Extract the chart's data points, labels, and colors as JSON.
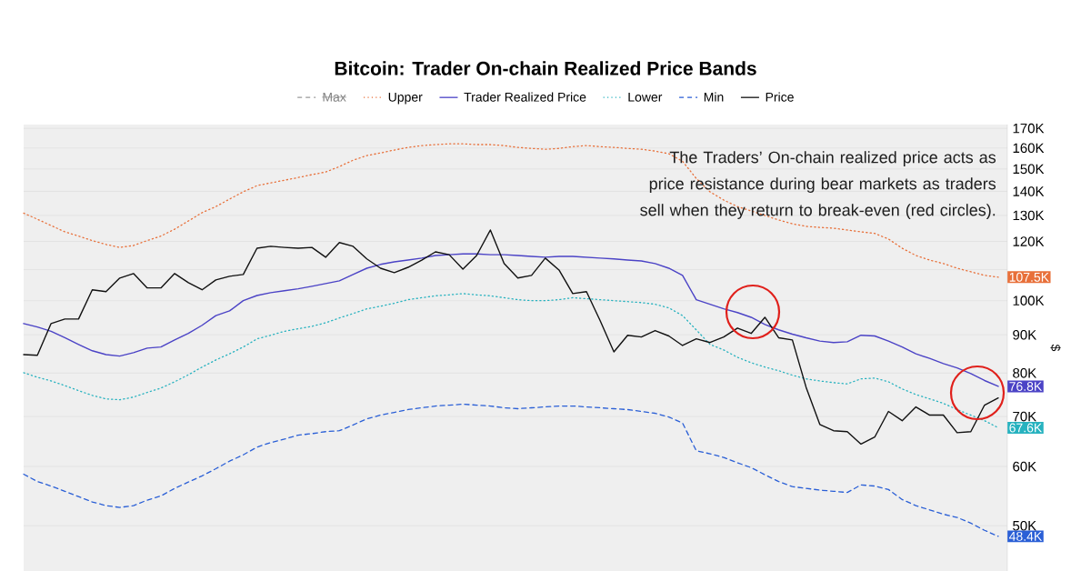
{
  "chart_data": {
    "type": "line",
    "title": "Bitcoin: Trader On-chain Realized Price Bands",
    "ylabel": "$",
    "annotations": [
      "The Traders’ On-chain realized price acts as price resistance during bear markets as traders sell when they return to break-even (red circles)."
    ],
    "categories": [
      null,
      null,
      null,
      null,
      null,
      null,
      null,
      null,
      null,
      null,
      null,
      null,
      null,
      null,
      null,
      null,
      null,
      null,
      null,
      null,
      null,
      null,
      null,
      null,
      null,
      null,
      null,
      null,
      null,
      null,
      null,
      null,
      null,
      null,
      null,
      null,
      null,
      null,
      null,
      null,
      null,
      null,
      null,
      null,
      null,
      null,
      null,
      null,
      null,
      null,
      null,
      null,
      null,
      null,
      null,
      null,
      null,
      null,
      null,
      null,
      null,
      null,
      null,
      null,
      null,
      null,
      null,
      null,
      null,
      null,
      null,
      null
    ],
    "log": true,
    "ylim": [
      43.5,
      172
    ],
    "yticks": [
      {
        "value": 50,
        "label": "50K"
      },
      {
        "value": 60,
        "label": "60K"
      },
      {
        "value": 70,
        "label": "70K"
      },
      {
        "value": 80,
        "label": "80K"
      },
      {
        "value": 90,
        "label": "90K"
      },
      {
        "value": 100,
        "label": "100K"
      },
      {
        "value": 110,
        "label": null
      },
      {
        "value": 120,
        "label": "120K"
      },
      {
        "value": 130,
        "label": "130K"
      },
      {
        "value": 140,
        "label": "140K"
      },
      {
        "value": 150,
        "label": "150K"
      },
      {
        "value": 160,
        "label": "160K"
      },
      {
        "value": 170,
        "label": "170K"
      }
    ],
    "tick_labels": "y",
    "grid": "y",
    "legend": "top",
    "marker": "none",
    "series": [
      {
        "name": "Max",
        "color": "#9a9a9a",
        "line_style": "dashed",
        "values": [
          null,
          null,
          null,
          null,
          null,
          null,
          null,
          null,
          null,
          null,
          null,
          null,
          null,
          null,
          null,
          null,
          null,
          null,
          null,
          null,
          null,
          null,
          null,
          null,
          null,
          null,
          null,
          null,
          null,
          null,
          null,
          null,
          null,
          null,
          null,
          null,
          null,
          null,
          null,
          null,
          null,
          null,
          null,
          null,
          null,
          null,
          null,
          null,
          null,
          null,
          null,
          null,
          null,
          null,
          null,
          null,
          null,
          null,
          null,
          null,
          null,
          null,
          null,
          null,
          null,
          null,
          null,
          null,
          null,
          null,
          null,
          null
        ]
      },
      {
        "name": "Upper",
        "color": "#e8703a",
        "line_style": "dotted",
        "values": [
          130.9,
          128.5,
          126.0,
          123.6,
          122.0,
          120.3,
          118.9,
          117.8,
          118.5,
          120.3,
          122.0,
          124.6,
          127.8,
          131.1,
          133.6,
          136.7,
          139.8,
          142.5,
          143.7,
          144.9,
          146.1,
          147.4,
          148.6,
          151.1,
          154.1,
          156.3,
          157.6,
          159.0,
          160.3,
          161.2,
          161.7,
          162.1,
          162.1,
          161.7,
          161.7,
          161.2,
          160.3,
          159.8,
          159.4,
          159.8,
          160.7,
          161.2,
          160.7,
          160.3,
          159.8,
          159.4,
          158.5,
          157.2,
          153.6,
          145.7,
          139.8,
          136.3,
          133.6,
          131.8,
          130.0,
          128.2,
          126.7,
          125.7,
          125.3,
          125.0,
          124.3,
          123.6,
          123.0,
          120.9,
          117.5,
          114.9,
          113.3,
          112.1,
          110.5,
          109.3,
          108.1,
          107.5
        ],
        "value_labels": [
          null,
          null,
          null,
          null,
          null,
          null,
          null,
          null,
          null,
          null,
          null,
          null,
          null,
          null,
          null,
          null,
          null,
          null,
          null,
          null,
          null,
          null,
          null,
          null,
          null,
          null,
          null,
          null,
          null,
          null,
          null,
          null,
          null,
          null,
          null,
          null,
          null,
          null,
          null,
          null,
          null,
          null,
          null,
          null,
          null,
          null,
          null,
          null,
          null,
          null,
          null,
          null,
          null,
          null,
          null,
          null,
          null,
          null,
          null,
          null,
          null,
          null,
          null,
          null,
          null,
          null,
          null,
          null,
          null,
          null,
          null,
          "107.5K"
        ]
      },
      {
        "name": "Trader Realized Price",
        "color": "#4b43c6",
        "line_style": "solid",
        "values": [
          93.2,
          92.2,
          91.0,
          89.2,
          87.4,
          85.7,
          84.7,
          84.3,
          85.2,
          86.4,
          86.7,
          88.6,
          90.4,
          92.7,
          95.5,
          96.9,
          100.0,
          101.6,
          102.5,
          103.1,
          103.7,
          104.5,
          105.4,
          106.3,
          108.4,
          110.5,
          111.8,
          112.7,
          113.3,
          114.0,
          114.9,
          115.2,
          115.5,
          115.5,
          115.2,
          115.2,
          114.9,
          114.6,
          114.3,
          114.6,
          114.6,
          114.3,
          114.0,
          113.7,
          113.3,
          113.0,
          112.1,
          110.5,
          108.1,
          100.3,
          98.9,
          97.5,
          96.4,
          95.0,
          92.9,
          91.4,
          90.2,
          89.2,
          88.3,
          87.9,
          88.1,
          89.9,
          89.7,
          88.3,
          86.7,
          84.9,
          83.7,
          82.4,
          81.3,
          79.9,
          78.2,
          76.8
        ],
        "value_labels": [
          null,
          null,
          null,
          null,
          null,
          null,
          null,
          null,
          null,
          null,
          null,
          null,
          null,
          null,
          null,
          null,
          null,
          null,
          null,
          null,
          null,
          null,
          null,
          null,
          null,
          null,
          null,
          null,
          null,
          null,
          null,
          null,
          null,
          null,
          null,
          null,
          null,
          null,
          null,
          null,
          null,
          null,
          null,
          null,
          null,
          null,
          null,
          null,
          null,
          null,
          null,
          null,
          null,
          null,
          null,
          null,
          null,
          null,
          null,
          null,
          null,
          null,
          null,
          null,
          null,
          null,
          null,
          null,
          null,
          null,
          null,
          "76.8K"
        ]
      },
      {
        "name": "Lower",
        "color": "#27b2bf",
        "line_style": "dotted",
        "values": [
          80.1,
          79.0,
          78.1,
          77.0,
          75.8,
          74.7,
          73.9,
          73.7,
          74.3,
          75.4,
          76.4,
          77.9,
          79.6,
          81.5,
          83.3,
          84.9,
          86.7,
          88.9,
          89.9,
          91.0,
          91.7,
          92.4,
          93.4,
          94.8,
          96.1,
          97.5,
          98.3,
          99.2,
          100.3,
          100.9,
          101.5,
          101.8,
          102.2,
          101.8,
          101.5,
          100.9,
          100.3,
          100.0,
          100.0,
          100.3,
          100.9,
          100.6,
          100.3,
          100.0,
          99.7,
          99.4,
          98.9,
          97.8,
          95.5,
          91.4,
          87.4,
          85.9,
          84.0,
          82.6,
          81.5,
          80.6,
          79.5,
          78.6,
          78.1,
          77.7,
          77.4,
          78.6,
          78.8,
          77.9,
          76.2,
          74.9,
          73.9,
          72.9,
          71.5,
          70.3,
          69.1,
          67.6
        ],
        "value_labels": [
          null,
          null,
          null,
          null,
          null,
          null,
          null,
          null,
          null,
          null,
          null,
          null,
          null,
          null,
          null,
          null,
          null,
          null,
          null,
          null,
          null,
          null,
          null,
          null,
          null,
          null,
          null,
          null,
          null,
          null,
          null,
          null,
          null,
          null,
          null,
          null,
          null,
          null,
          null,
          null,
          null,
          null,
          null,
          null,
          null,
          null,
          null,
          null,
          null,
          null,
          null,
          null,
          null,
          null,
          null,
          null,
          null,
          null,
          null,
          null,
          null,
          null,
          null,
          null,
          null,
          null,
          null,
          null,
          null,
          null,
          null,
          "67.6K"
        ]
      },
      {
        "name": "Min",
        "color": "#2a5fd6",
        "line_style": "dashed",
        "values": [
          58.6,
          57.3,
          56.5,
          55.6,
          54.7,
          53.8,
          53.2,
          52.9,
          53.2,
          54.1,
          54.8,
          56.1,
          57.2,
          58.3,
          59.6,
          61.0,
          62.2,
          63.7,
          64.6,
          65.3,
          66.1,
          66.4,
          66.8,
          67.0,
          68.2,
          69.5,
          70.3,
          70.9,
          71.5,
          71.9,
          72.3,
          72.5,
          72.7,
          72.5,
          72.3,
          71.9,
          71.7,
          71.9,
          72.1,
          72.3,
          72.3,
          72.1,
          71.9,
          71.7,
          71.5,
          71.1,
          70.7,
          69.9,
          68.6,
          63.0,
          62.4,
          61.7,
          60.7,
          59.8,
          58.5,
          57.3,
          56.4,
          56.1,
          55.8,
          55.6,
          55.4,
          56.7,
          56.5,
          55.9,
          54.2,
          53.2,
          52.5,
          51.8,
          51.3,
          50.4,
          49.3,
          48.4
        ],
        "value_labels": [
          null,
          null,
          null,
          null,
          null,
          null,
          null,
          null,
          null,
          null,
          null,
          null,
          null,
          null,
          null,
          null,
          null,
          null,
          null,
          null,
          null,
          null,
          null,
          null,
          null,
          null,
          null,
          null,
          null,
          null,
          null,
          null,
          null,
          null,
          null,
          null,
          null,
          null,
          null,
          null,
          null,
          null,
          null,
          null,
          null,
          null,
          null,
          null,
          null,
          null,
          null,
          null,
          null,
          null,
          null,
          null,
          null,
          null,
          null,
          null,
          null,
          null,
          null,
          null,
          null,
          null,
          null,
          null,
          null,
          null,
          null,
          "48.4K"
        ]
      },
      {
        "name": "Price",
        "color": "#111111",
        "line_style": "solid",
        "values": [
          84.7,
          84.5,
          93.2,
          94.5,
          94.5,
          103.4,
          102.8,
          107.2,
          108.7,
          104.0,
          104.0,
          108.7,
          105.7,
          103.4,
          106.6,
          107.8,
          108.4,
          117.5,
          118.2,
          117.8,
          117.5,
          117.8,
          114.3,
          119.6,
          118.2,
          113.7,
          110.5,
          109.0,
          110.8,
          113.3,
          116.2,
          115.2,
          110.2,
          114.9,
          124.3,
          112.1,
          107.2,
          108.1,
          114.0,
          109.9,
          102.2,
          102.8,
          94.0,
          85.4,
          89.9,
          89.4,
          91.2,
          89.7,
          87.1,
          88.9,
          87.9,
          89.4,
          91.9,
          90.4,
          95.0,
          89.2,
          88.6,
          76.6,
          68.3,
          67.0,
          66.8,
          64.3,
          65.7,
          71.1,
          69.1,
          72.1,
          70.3,
          70.3,
          66.6,
          66.8,
          72.5,
          74.1
        ]
      }
    ]
  }
}
